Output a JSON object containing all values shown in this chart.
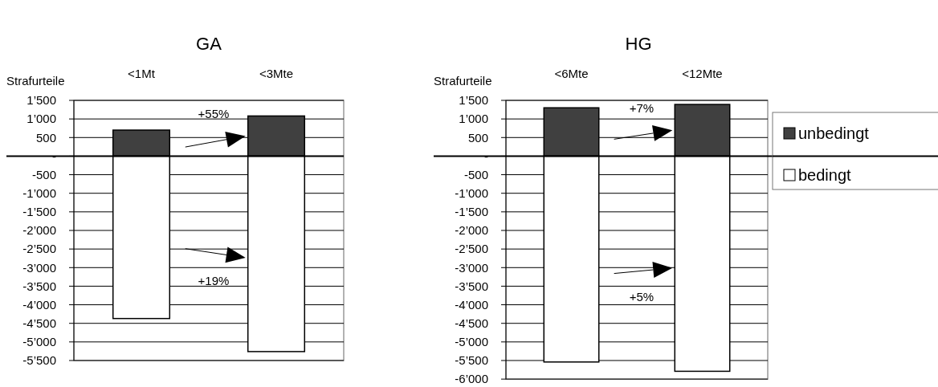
{
  "chart_data": [
    {
      "type": "bar",
      "title": "GA",
      "ylabel": "Strafurteile",
      "categories": [
        "<1Mt",
        "<3Mte"
      ],
      "stacked": true,
      "grid": "y",
      "legend": false,
      "series": [
        {
          "color": "#404040",
          "values": [
            700,
            1080
          ]
        },
        {
          "color": "#ffffff",
          "values": [
            -4370,
            -5260
          ]
        }
      ],
      "ylim": [
        -5500,
        1500
      ],
      "yticks": [
        {
          "value": 1500,
          "label": "1’500"
        },
        {
          "value": 1000,
          "label": "1’000"
        },
        {
          "value": 500,
          "label": "500"
        },
        {
          "value": 0,
          "label": "-"
        },
        {
          "value": -500,
          "label": "-500"
        },
        {
          "value": -1000,
          "label": "-1’000"
        },
        {
          "value": -1500,
          "label": "-1’500"
        },
        {
          "value": -2000,
          "label": "-2’000"
        },
        {
          "value": -2500,
          "label": "-2’500"
        },
        {
          "value": -3000,
          "label": "-3’000"
        },
        {
          "value": -3500,
          "label": "-3’500"
        },
        {
          "value": -4000,
          "label": "-4’000"
        },
        {
          "value": -4500,
          "label": "-4’500"
        },
        {
          "value": -5000,
          "label": "-5’000"
        },
        {
          "value": -5500,
          "label": "-5’500"
        }
      ],
      "annotations": [
        "+55%",
        "+19%"
      ]
    },
    {
      "type": "bar",
      "title": "HG",
      "ylabel": "Strafurteile",
      "categories": [
        "<6Mte",
        "<12Mte"
      ],
      "stacked": true,
      "grid": "y",
      "legend": "right",
      "series": [
        {
          "name": "unbedingt",
          "color": "#404040",
          "values": [
            1300,
            1390
          ]
        },
        {
          "name": "bedingt",
          "color": "#ffffff",
          "values": [
            -5540,
            -5790
          ]
        }
      ],
      "ylim": [
        -6000,
        1500
      ],
      "yticks": [
        {
          "value": 1500,
          "label": "1’500"
        },
        {
          "value": 1000,
          "label": "1’000"
        },
        {
          "value": 500,
          "label": "500"
        },
        {
          "value": 0,
          "label": "-"
        },
        {
          "value": -500,
          "label": "-500"
        },
        {
          "value": -1000,
          "label": "-1’000"
        },
        {
          "value": -1500,
          "label": "-1’500"
        },
        {
          "value": -2000,
          "label": "-2’000"
        },
        {
          "value": -2500,
          "label": "-2’500"
        },
        {
          "value": -3000,
          "label": "-3’000"
        },
        {
          "value": -3500,
          "label": "-3’500"
        },
        {
          "value": -4000,
          "label": "-4’000"
        },
        {
          "value": -4500,
          "label": "-4’500"
        },
        {
          "value": -5000,
          "label": "-5’000"
        },
        {
          "value": -5500,
          "label": "-5’500"
        },
        {
          "value": -6000,
          "label": "-6’000"
        }
      ],
      "annotations": [
        "+7%",
        "+5%"
      ]
    }
  ]
}
